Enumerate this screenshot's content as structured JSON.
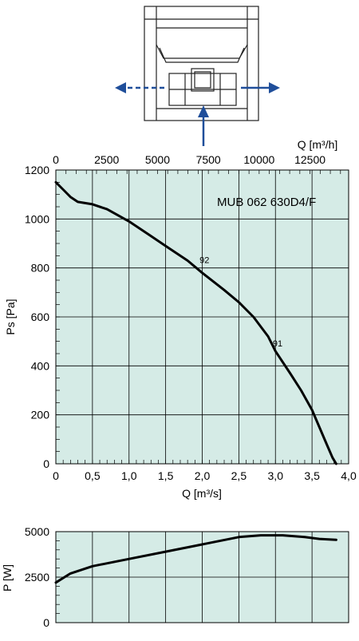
{
  "diagram": {
    "arrow_color": "#1f4e9a"
  },
  "chart_data": [
    {
      "type": "line",
      "title": "MUB 062 630D4/F",
      "xlabel": "Q [m³/s]",
      "ylabel": "Ps [Pa]",
      "x2label": "Q [m³/h]",
      "xlim": [
        0,
        4.0
      ],
      "ylim": [
        0,
        1200
      ],
      "x2lim": [
        0,
        14400
      ],
      "xticks": [
        0,
        0.5,
        1.0,
        1.5,
        2.0,
        2.5,
        3.0,
        3.5,
        4.0
      ],
      "xtick_labels": [
        "0",
        "0,5",
        "1,0",
        "1,5",
        "2,0",
        "2,5",
        "3,0",
        "3,5",
        "4,0"
      ],
      "yticks": [
        0,
        200,
        400,
        600,
        800,
        1000,
        1200
      ],
      "ytick_labels": [
        "0",
        "200",
        "400",
        "600",
        "800",
        "1000",
        "1200"
      ],
      "x2ticks": [
        0,
        2500,
        5000,
        7500,
        10000,
        12500
      ],
      "x2tick_labels": [
        "0",
        "2500",
        "5000",
        "7500",
        "10000",
        "12500"
      ],
      "grid": true,
      "background": "#d5ebe6",
      "series": [
        {
          "x": [
            0,
            0.1,
            0.2,
            0.3,
            0.5,
            0.7,
            1.0,
            1.3,
            1.5,
            1.8,
            2.0,
            2.3,
            2.5,
            2.7,
            2.9,
            3.0,
            3.2,
            3.35,
            3.5,
            3.6,
            3.7,
            3.78,
            3.83
          ],
          "y": [
            1150,
            1120,
            1090,
            1070,
            1060,
            1040,
            990,
            930,
            890,
            830,
            780,
            710,
            660,
            600,
            520,
            460,
            370,
            300,
            220,
            150,
            80,
            25,
            0
          ]
        }
      ],
      "annotations": [
        {
          "text": "92",
          "x": 2.03,
          "y": 820
        },
        {
          "text": "91",
          "x": 3.03,
          "y": 480
        }
      ]
    },
    {
      "type": "line",
      "ylabel": "P [W]",
      "xlim": [
        0,
        4.0
      ],
      "ylim": [
        0,
        5000
      ],
      "yticks": [
        0,
        2500,
        5000
      ],
      "ytick_labels": [
        "0",
        "2500",
        "5000"
      ],
      "grid": true,
      "background": "#d5ebe6",
      "series": [
        {
          "x": [
            0,
            0.2,
            0.5,
            1.0,
            1.5,
            2.0,
            2.5,
            2.8,
            3.1,
            3.4,
            3.6,
            3.83
          ],
          "y": [
            2200,
            2700,
            3100,
            3500,
            3900,
            4300,
            4700,
            4800,
            4800,
            4700,
            4600,
            4550
          ]
        }
      ]
    }
  ]
}
